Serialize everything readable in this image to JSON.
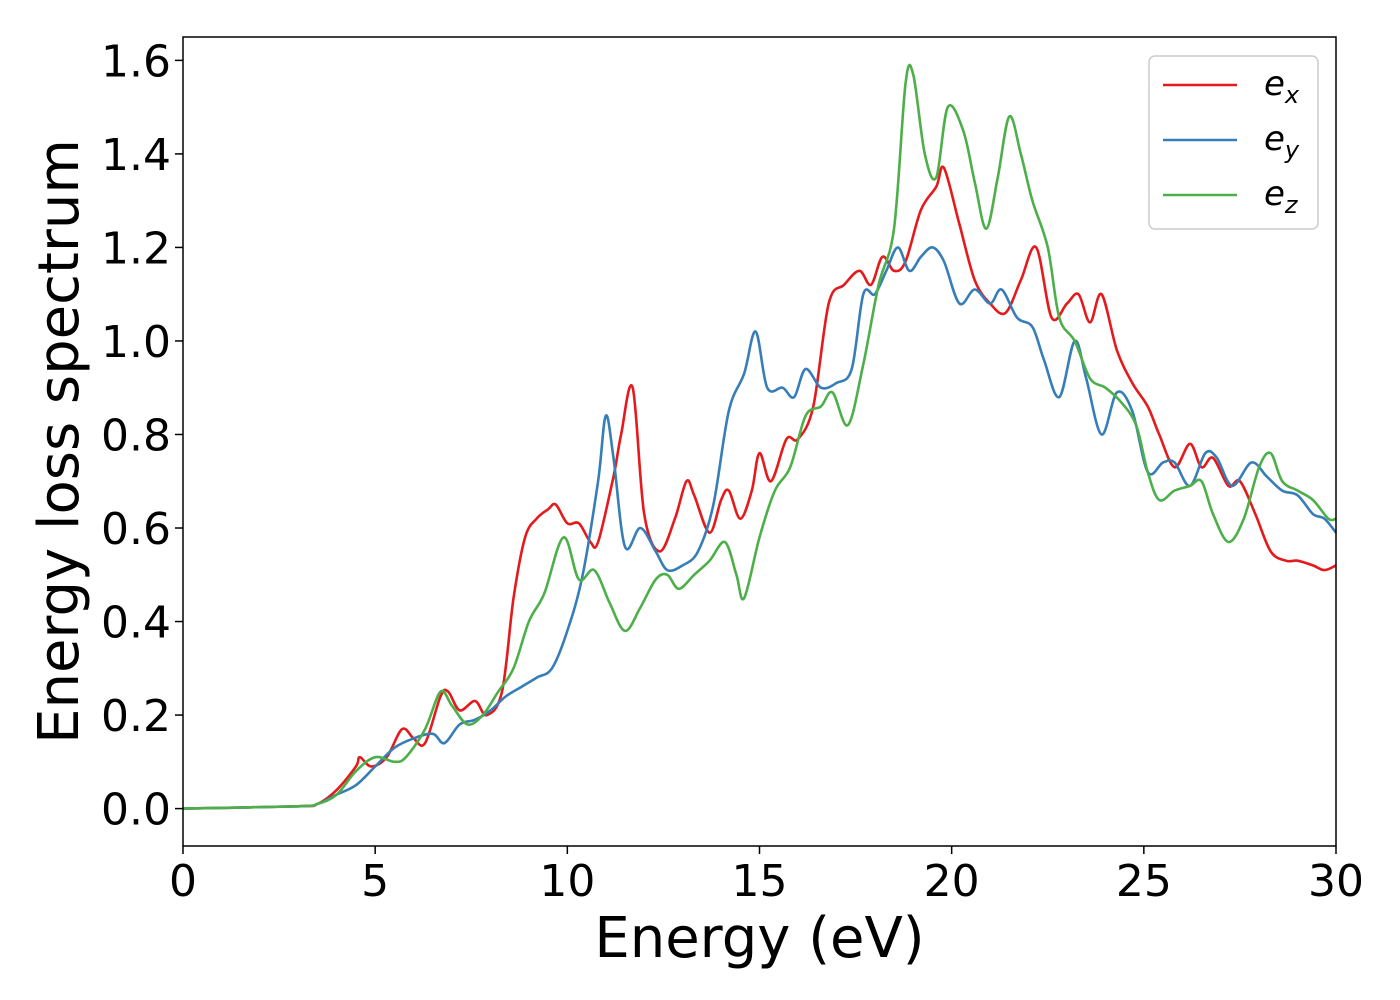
{
  "chart_data": {
    "type": "line",
    "title": "",
    "xlabel": "Energy (eV)",
    "ylabel": "Energy loss spectrum",
    "xlim": [
      0,
      30
    ],
    "ylim": [
      -0.08,
      1.65
    ],
    "xticks": [
      0,
      5,
      10,
      15,
      20,
      25,
      30
    ],
    "xtick_labels": [
      "0",
      "5",
      "10",
      "15",
      "20",
      "25",
      "30"
    ],
    "yticks": [
      0.0,
      0.2,
      0.4,
      0.6,
      0.8,
      1.0,
      1.2,
      1.4,
      1.6
    ],
    "ytick_labels": [
      "0.0",
      "0.2",
      "0.4",
      "0.6",
      "0.8",
      "1.0",
      "1.2",
      "1.4",
      "1.6"
    ],
    "grid": false,
    "legend_position": "top-right",
    "series": [
      {
        "name": "e",
        "subscript": "x",
        "color": "#e41a1c",
        "points": [
          [
            0,
            0.0
          ],
          [
            3,
            0.005
          ],
          [
            3.5,
            0.01
          ],
          [
            4,
            0.04
          ],
          [
            4.5,
            0.09
          ],
          [
            4.6,
            0.11
          ],
          [
            4.9,
            0.09
          ],
          [
            5.3,
            0.11
          ],
          [
            5.7,
            0.17
          ],
          [
            6,
            0.15
          ],
          [
            6.3,
            0.14
          ],
          [
            6.7,
            0.24
          ],
          [
            6.9,
            0.25
          ],
          [
            7.2,
            0.21
          ],
          [
            7.6,
            0.23
          ],
          [
            7.9,
            0.2
          ],
          [
            8.3,
            0.25
          ],
          [
            8.6,
            0.45
          ],
          [
            8.9,
            0.58
          ],
          [
            9.2,
            0.62
          ],
          [
            9.5,
            0.64
          ],
          [
            9.7,
            0.65
          ],
          [
            10,
            0.61
          ],
          [
            10.3,
            0.61
          ],
          [
            10.6,
            0.57
          ],
          [
            10.8,
            0.57
          ],
          [
            11.2,
            0.71
          ],
          [
            11.4,
            0.8
          ],
          [
            11.7,
            0.9
          ],
          [
            12,
            0.63
          ],
          [
            12.4,
            0.55
          ],
          [
            12.8,
            0.62
          ],
          [
            13.1,
            0.7
          ],
          [
            13.3,
            0.67
          ],
          [
            13.7,
            0.59
          ],
          [
            14,
            0.66
          ],
          [
            14.2,
            0.68
          ],
          [
            14.5,
            0.62
          ],
          [
            14.8,
            0.68
          ],
          [
            15,
            0.76
          ],
          [
            15.3,
            0.7
          ],
          [
            15.7,
            0.79
          ],
          [
            16,
            0.79
          ],
          [
            16.4,
            0.86
          ],
          [
            16.8,
            1.08
          ],
          [
            17.2,
            1.12
          ],
          [
            17.6,
            1.15
          ],
          [
            17.9,
            1.12
          ],
          [
            18.2,
            1.18
          ],
          [
            18.5,
            1.15
          ],
          [
            18.8,
            1.17
          ],
          [
            19.2,
            1.28
          ],
          [
            19.6,
            1.33
          ],
          [
            19.8,
            1.37
          ],
          [
            20.2,
            1.25
          ],
          [
            20.6,
            1.13
          ],
          [
            21,
            1.08
          ],
          [
            21.4,
            1.06
          ],
          [
            21.8,
            1.13
          ],
          [
            22.2,
            1.2
          ],
          [
            22.6,
            1.05
          ],
          [
            23,
            1.08
          ],
          [
            23.3,
            1.1
          ],
          [
            23.6,
            1.04
          ],
          [
            23.9,
            1.1
          ],
          [
            24.3,
            0.98
          ],
          [
            24.7,
            0.91
          ],
          [
            25.1,
            0.86
          ],
          [
            25.4,
            0.8
          ],
          [
            25.8,
            0.73
          ],
          [
            26.2,
            0.78
          ],
          [
            26.5,
            0.73
          ],
          [
            26.8,
            0.75
          ],
          [
            27.2,
            0.69
          ],
          [
            27.5,
            0.7
          ],
          [
            27.9,
            0.63
          ],
          [
            28.3,
            0.55
          ],
          [
            28.7,
            0.53
          ],
          [
            29,
            0.53
          ],
          [
            29.4,
            0.52
          ],
          [
            29.7,
            0.51
          ],
          [
            30,
            0.52
          ]
        ]
      },
      {
        "name": "e",
        "subscript": "y",
        "color": "#377eb8",
        "points": [
          [
            0,
            0.0
          ],
          [
            3,
            0.005
          ],
          [
            3.5,
            0.01
          ],
          [
            4,
            0.03
          ],
          [
            4.5,
            0.05
          ],
          [
            5,
            0.09
          ],
          [
            5.5,
            0.13
          ],
          [
            6,
            0.15
          ],
          [
            6.5,
            0.16
          ],
          [
            6.8,
            0.14
          ],
          [
            7.2,
            0.18
          ],
          [
            7.6,
            0.19
          ],
          [
            8,
            0.21
          ],
          [
            8.4,
            0.24
          ],
          [
            8.8,
            0.26
          ],
          [
            9.2,
            0.28
          ],
          [
            9.6,
            0.3
          ],
          [
            10,
            0.38
          ],
          [
            10.4,
            0.5
          ],
          [
            10.8,
            0.7
          ],
          [
            11,
            0.84
          ],
          [
            11.2,
            0.75
          ],
          [
            11.5,
            0.56
          ],
          [
            11.9,
            0.6
          ],
          [
            12.3,
            0.55
          ],
          [
            12.6,
            0.51
          ],
          [
            13,
            0.52
          ],
          [
            13.4,
            0.55
          ],
          [
            13.8,
            0.65
          ],
          [
            14.2,
            0.85
          ],
          [
            14.6,
            0.93
          ],
          [
            14.9,
            1.02
          ],
          [
            15.2,
            0.9
          ],
          [
            15.6,
            0.9
          ],
          [
            15.9,
            0.88
          ],
          [
            16.2,
            0.94
          ],
          [
            16.6,
            0.9
          ],
          [
            17,
            0.91
          ],
          [
            17.4,
            0.94
          ],
          [
            17.7,
            1.1
          ],
          [
            18,
            1.1
          ],
          [
            18.3,
            1.15
          ],
          [
            18.6,
            1.2
          ],
          [
            18.9,
            1.15
          ],
          [
            19.2,
            1.18
          ],
          [
            19.5,
            1.2
          ],
          [
            19.8,
            1.17
          ],
          [
            20.2,
            1.08
          ],
          [
            20.6,
            1.11
          ],
          [
            21,
            1.08
          ],
          [
            21.3,
            1.11
          ],
          [
            21.7,
            1.05
          ],
          [
            22.1,
            1.03
          ],
          [
            22.4,
            0.96
          ],
          [
            22.8,
            0.88
          ],
          [
            23.2,
            1.0
          ],
          [
            23.5,
            0.92
          ],
          [
            23.9,
            0.8
          ],
          [
            24.3,
            0.89
          ],
          [
            24.7,
            0.85
          ],
          [
            25.1,
            0.72
          ],
          [
            25.5,
            0.74
          ],
          [
            25.8,
            0.74
          ],
          [
            26.2,
            0.69
          ],
          [
            26.6,
            0.76
          ],
          [
            26.9,
            0.75
          ],
          [
            27.3,
            0.69
          ],
          [
            27.8,
            0.74
          ],
          [
            28.2,
            0.71
          ],
          [
            28.6,
            0.68
          ],
          [
            29,
            0.67
          ],
          [
            29.4,
            0.63
          ],
          [
            29.7,
            0.62
          ],
          [
            30,
            0.59
          ]
        ]
      },
      {
        "name": "e",
        "subscript": "z",
        "color": "#4daf4a",
        "points": [
          [
            0,
            0.0
          ],
          [
            3,
            0.005
          ],
          [
            3.5,
            0.01
          ],
          [
            4,
            0.03
          ],
          [
            4.5,
            0.08
          ],
          [
            5,
            0.11
          ],
          [
            5.5,
            0.1
          ],
          [
            5.8,
            0.11
          ],
          [
            6.3,
            0.17
          ],
          [
            6.7,
            0.25
          ],
          [
            7,
            0.22
          ],
          [
            7.4,
            0.18
          ],
          [
            7.8,
            0.2
          ],
          [
            8.2,
            0.25
          ],
          [
            8.6,
            0.3
          ],
          [
            9,
            0.4
          ],
          [
            9.4,
            0.46
          ],
          [
            9.9,
            0.58
          ],
          [
            10.3,
            0.49
          ],
          [
            10.7,
            0.51
          ],
          [
            11.1,
            0.44
          ],
          [
            11.5,
            0.38
          ],
          [
            11.9,
            0.43
          ],
          [
            12.3,
            0.49
          ],
          [
            12.6,
            0.5
          ],
          [
            12.9,
            0.47
          ],
          [
            13.3,
            0.5
          ],
          [
            13.7,
            0.53
          ],
          [
            14.1,
            0.57
          ],
          [
            14.4,
            0.5
          ],
          [
            14.6,
            0.45
          ],
          [
            15,
            0.58
          ],
          [
            15.4,
            0.68
          ],
          [
            15.8,
            0.73
          ],
          [
            16.2,
            0.84
          ],
          [
            16.6,
            0.86
          ],
          [
            16.9,
            0.89
          ],
          [
            17.3,
            0.82
          ],
          [
            17.7,
            0.95
          ],
          [
            18.1,
            1.12
          ],
          [
            18.5,
            1.24
          ],
          [
            18.8,
            1.55
          ],
          [
            19,
            1.57
          ],
          [
            19.3,
            1.4
          ],
          [
            19.6,
            1.35
          ],
          [
            19.9,
            1.5
          ],
          [
            20.3,
            1.45
          ],
          [
            20.6,
            1.34
          ],
          [
            20.9,
            1.24
          ],
          [
            21.2,
            1.35
          ],
          [
            21.5,
            1.48
          ],
          [
            21.8,
            1.4
          ],
          [
            22.1,
            1.3
          ],
          [
            22.5,
            1.2
          ],
          [
            22.8,
            1.05
          ],
          [
            23.2,
            1.0
          ],
          [
            23.6,
            0.92
          ],
          [
            24,
            0.9
          ],
          [
            24.4,
            0.87
          ],
          [
            24.8,
            0.82
          ],
          [
            25.1,
            0.72
          ],
          [
            25.4,
            0.66
          ],
          [
            25.8,
            0.68
          ],
          [
            26.2,
            0.69
          ],
          [
            26.5,
            0.7
          ],
          [
            26.8,
            0.63
          ],
          [
            27.2,
            0.57
          ],
          [
            27.6,
            0.62
          ],
          [
            28,
            0.73
          ],
          [
            28.3,
            0.76
          ],
          [
            28.6,
            0.7
          ],
          [
            29,
            0.68
          ],
          [
            29.4,
            0.66
          ],
          [
            29.8,
            0.62
          ],
          [
            30,
            0.62
          ]
        ]
      }
    ]
  }
}
